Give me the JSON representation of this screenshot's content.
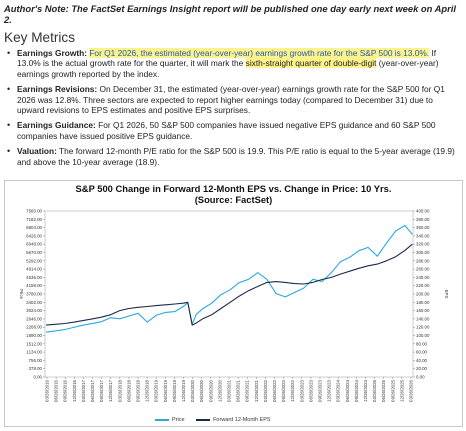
{
  "note": "Author's Note: The FactSet Earnings Insight report will be published one day early next week on April 2.",
  "heading": "Key Metrics",
  "metrics": {
    "growth": {
      "label": "Earnings Growth:",
      "hl1": "For Q1 2026, the estimated (year-over-year) earnings growth rate for the S&P 500 is 13.0%.",
      "mid": " If 13.0% is the actual growth rate for the quarter, it will mark the ",
      "hl2": "sixth-straight quarter of double-digit",
      "end": " (year-over-year) earnings growth reported by the index."
    },
    "revisions": {
      "label": "Earnings Revisions:",
      "text": " On December 31, the estimated (year-over-year) earnings growth rate for the S&P 500 for Q1 2026 was 12.8%. Three sectors are expected to report higher earnings today (compared to December 31) due to upward revisions to EPS estimates and positive EPS surprises."
    },
    "guidance": {
      "label": "Earnings Guidance:",
      "text": " For Q1 2026, 50 S&P 500 companies have issued negative EPS guidance and 60 S&P 500 companies have issued positive EPS guidance."
    },
    "valuation": {
      "label": "Valuation:",
      "text": " The forward 12-month P/E ratio for the S&P 500 is 19.9. This P/E ratio is equal to the 5-year average (19.9) and above the 10-year average (18.9)."
    }
  },
  "chart_data": {
    "type": "line",
    "title": "S&P 500 Change in Forward 12-Month EPS vs. Change in Price: 10 Yrs.",
    "subtitle": "(Source: FactSet)",
    "left_axis_label": "Price",
    "right_axis_label": "EPS",
    "ylim_left": [
      0,
      7560
    ],
    "ylim_right": [
      0,
      400
    ],
    "y_ticks_left": [
      "7560.00",
      "7182.00",
      "6804.00",
      "6426.00",
      "6048.00",
      "5670.00",
      "5292.00",
      "4914.00",
      "4536.00",
      "4158.00",
      "3780.00",
      "3402.00",
      "3024.00",
      "2646.00",
      "2268.00",
      "1890.00",
      "1512.00",
      "1134.00",
      "756.00",
      "378.00",
      "0.00"
    ],
    "y_ticks_right": [
      "400.00",
      "380.00",
      "360.00",
      "340.00",
      "320.00",
      "300.00",
      "280.00",
      "260.00",
      "240.00",
      "220.00",
      "200.00",
      "180.00",
      "160.00",
      "140.00",
      "120.00",
      "100.00",
      "80.00",
      "60.00",
      "40.00",
      "20.00",
      "0.00"
    ],
    "x_ticks": [
      "03/26/2016",
      "06/26/2016",
      "09/26/2016",
      "12/26/2016",
      "03/26/2017",
      "06/26/2017",
      "09/26/2017",
      "12/26/2017",
      "03/26/2018",
      "06/26/2018",
      "09/26/2018",
      "12/26/2018",
      "03/26/2019",
      "06/26/2019",
      "09/26/2019",
      "12/26/2019",
      "03/26/2020",
      "06/26/2020",
      "09/26/2020",
      "12/26/2020",
      "03/26/2021",
      "06/26/2021",
      "09/26/2021",
      "12/26/2021",
      "03/26/2022",
      "06/26/2022",
      "09/26/2022",
      "12/26/2022",
      "03/26/2023",
      "06/26/2023",
      "09/26/2023",
      "12/26/2023",
      "03/26/2024",
      "06/26/2024",
      "09/26/2024",
      "12/26/2024",
      "03/26/2025",
      "06/26/2025",
      "09/26/2025",
      "12/26/2025",
      "03/26/2026"
    ],
    "x_years": [
      2016.25,
      2016.5,
      2016.75,
      2017.0,
      2017.25,
      2017.5,
      2017.75,
      2018.0,
      2018.25,
      2018.5,
      2018.75,
      2019.0,
      2019.25,
      2019.5,
      2019.75,
      2020.0,
      2020.1,
      2020.22,
      2020.33,
      2020.5,
      2020.75,
      2021.0,
      2021.25,
      2021.5,
      2021.75,
      2022.0,
      2022.25,
      2022.5,
      2022.75,
      2023.0,
      2023.25,
      2023.5,
      2023.75,
      2024.0,
      2024.25,
      2024.5,
      2024.75,
      2025.0,
      2025.25,
      2025.5,
      2025.75,
      2026.0,
      2026.2
    ],
    "series": [
      {
        "name": "Price",
        "color": "#29a8e0",
        "values": [
          2040,
          2100,
          2160,
          2260,
          2360,
          2430,
          2520,
          2700,
          2650,
          2780,
          2900,
          2500,
          2820,
          2940,
          2980,
          3240,
          3380,
          2400,
          2850,
          3100,
          3360,
          3750,
          3970,
          4300,
          4450,
          4750,
          4450,
          3800,
          3650,
          3850,
          4050,
          4450,
          4350,
          4750,
          5250,
          5450,
          5750,
          5900,
          5500,
          6100,
          6650,
          6900,
          6500
        ]
      },
      {
        "name": "Forward 12-Month EPS",
        "color": "#1c2a4a",
        "values": [
          125,
          127,
          129,
          132,
          136,
          140,
          144,
          150,
          160,
          165,
          168,
          170,
          172,
          174,
          176,
          178,
          180,
          125,
          130,
          140,
          150,
          165,
          180,
          195,
          208,
          218,
          228,
          230,
          228,
          225,
          224,
          228,
          235,
          240,
          248,
          255,
          262,
          268,
          272,
          280,
          290,
          305,
          320
        ]
      }
    ],
    "legend_position": "bottom"
  }
}
